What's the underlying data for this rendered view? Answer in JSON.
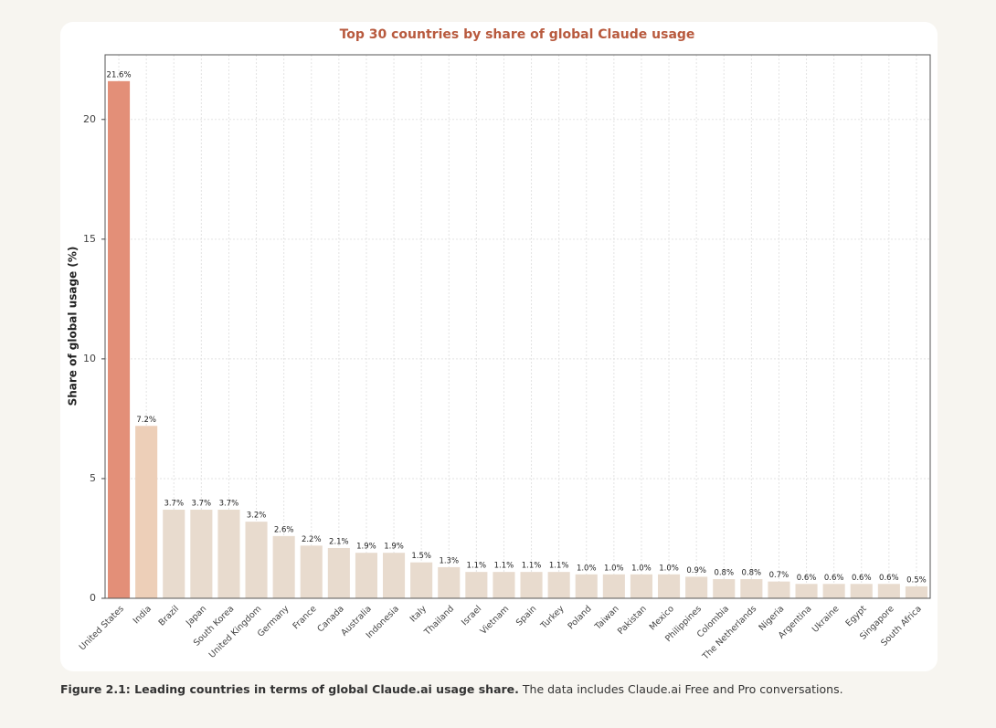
{
  "chart_data": {
    "type": "bar",
    "title": "Top 30 countries by share of global Claude usage",
    "ylabel": "Share of global usage (%)",
    "categories": [
      "United States",
      "India",
      "Brazil",
      "Japan",
      "South Korea",
      "United Kingdom",
      "Germany",
      "France",
      "Canada",
      "Australia",
      "Indonesia",
      "Italy",
      "Thailand",
      "Israel",
      "Vietnam",
      "Spain",
      "Turkey",
      "Poland",
      "Taiwan",
      "Pakistan",
      "Mexico",
      "Philippines",
      "Colombia",
      "The Netherlands",
      "Nigeria",
      "Argentina",
      "Ukraine",
      "Egypt",
      "Singapore",
      "South Africa"
    ],
    "values": [
      21.6,
      7.2,
      3.7,
      3.7,
      3.7,
      3.2,
      2.6,
      2.2,
      2.1,
      1.9,
      1.9,
      1.5,
      1.3,
      1.1,
      1.1,
      1.1,
      1.1,
      1.0,
      1.0,
      1.0,
      1.0,
      0.9,
      0.8,
      0.8,
      0.7,
      0.6,
      0.6,
      0.6,
      0.6,
      0.5
    ],
    "value_labels": [
      "21.6%",
      "7.2%",
      "3.7%",
      "3.7%",
      "3.7%",
      "3.2%",
      "2.6%",
      "2.2%",
      "2.1%",
      "1.9%",
      "1.9%",
      "1.5%",
      "1.3%",
      "1.1%",
      "1.1%",
      "1.1%",
      "1.1%",
      "1.0%",
      "1.0%",
      "1.0%",
      "1.0%",
      "0.9%",
      "0.8%",
      "0.8%",
      "0.7%",
      "0.6%",
      "0.6%",
      "0.6%",
      "0.6%",
      "0.5%"
    ],
    "colors": [
      "#e38f78",
      "#edcfb8",
      "#e8dbce",
      "#e8dbce",
      "#e8dbce",
      "#e8dbce",
      "#e8dbce",
      "#e8dbce",
      "#e8dbce",
      "#e8dbce",
      "#e8dbce",
      "#e8dbce",
      "#e8dbce",
      "#e8dbce",
      "#e8dbce",
      "#e8dbce",
      "#e8dbce",
      "#e8dbce",
      "#e8dbce",
      "#e8dbce",
      "#e8dbce",
      "#e8dbce",
      "#e8dbce",
      "#e8dbce",
      "#e8dbce",
      "#e8dbce",
      "#e8dbce",
      "#e8dbce",
      "#e8dbce",
      "#e8dbce"
    ],
    "ylim": [
      0,
      22.7
    ],
    "yticks": [
      0,
      5,
      10,
      15,
      20
    ],
    "grid": true
  },
  "caption": {
    "lead": "Figure 2.1: Leading countries in terms of global Claude.ai usage share.",
    "text": "The data includes Claude.ai Free and Pro conversations."
  }
}
